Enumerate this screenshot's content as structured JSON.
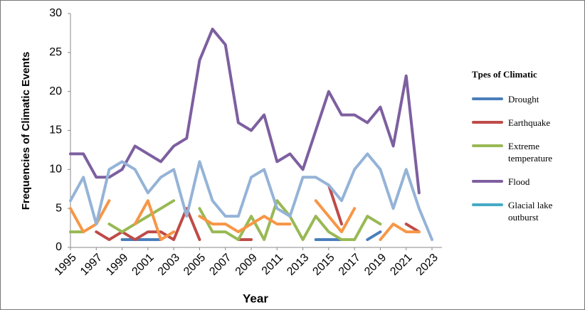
{
  "chart_data": {
    "type": "line",
    "y_label": "Frequencies of Climatic Events",
    "x_label": "Year",
    "legend_title": "Tpes of Climatic",
    "x": [
      1995,
      1996,
      1997,
      1998,
      1999,
      2000,
      2001,
      2002,
      2003,
      2004,
      2005,
      2006,
      2007,
      2008,
      2009,
      2010,
      2011,
      2012,
      2013,
      2014,
      2015,
      2016,
      2017,
      2018,
      2019,
      2020,
      2021,
      2022,
      2023
    ],
    "xlim": [
      1995,
      2023
    ],
    "xticks": [
      1995,
      1997,
      1999,
      2001,
      2003,
      2005,
      2007,
      2009,
      2011,
      2013,
      2015,
      2017,
      2019,
      2021,
      2023
    ],
    "ylim": [
      0,
      30
    ],
    "yticks": [
      0,
      5,
      10,
      15,
      20,
      25,
      30
    ],
    "grid": false,
    "series": [
      {
        "name": "Drought",
        "color": "#4a7ebb",
        "values": [
          null,
          null,
          null,
          null,
          1,
          1,
          1,
          1,
          null,
          null,
          null,
          null,
          null,
          null,
          null,
          null,
          null,
          null,
          null,
          1,
          1,
          1,
          null,
          1,
          2,
          null,
          null,
          null,
          null
        ]
      },
      {
        "name": "Earthquake",
        "color": "#be4b48",
        "values": [
          null,
          null,
          2,
          1,
          2,
          1,
          2,
          2,
          1,
          5,
          1,
          null,
          null,
          1,
          1,
          null,
          null,
          null,
          null,
          null,
          8,
          3,
          null,
          null,
          null,
          null,
          3,
          2,
          null
        ]
      },
      {
        "name": "Extreme temperature",
        "color": "#98b954",
        "values": [
          2,
          2,
          null,
          3,
          2,
          3,
          4,
          5,
          6,
          null,
          5,
          2,
          2,
          1,
          4,
          1,
          6,
          4,
          1,
          4,
          2,
          1,
          1,
          4,
          3,
          null,
          null,
          null,
          null
        ]
      },
      {
        "name": "Flood",
        "color": "#7d5fa0",
        "values": [
          12,
          12,
          9,
          9,
          10,
          13,
          12,
          11,
          13,
          14,
          24,
          28,
          26,
          16,
          15,
          17,
          11,
          12,
          10,
          15,
          20,
          17,
          17,
          16,
          18,
          13,
          22,
          7,
          null
        ]
      },
      {
        "name": "Glacial lake outburst",
        "color": "#46aac5",
        "values": [
          null,
          null,
          null,
          null,
          null,
          null,
          null,
          null,
          null,
          null,
          null,
          null,
          null,
          null,
          null,
          null,
          null,
          null,
          null,
          null,
          null,
          null,
          null,
          null,
          null,
          null,
          null,
          null,
          null
        ]
      },
      {
        "color": "#f79646",
        "values": [
          5,
          2,
          3,
          6,
          null,
          3,
          6,
          1,
          2,
          null,
          4,
          3,
          3,
          2,
          3,
          4,
          3,
          3,
          null,
          6,
          4,
          2,
          5,
          null,
          1,
          3,
          2,
          2,
          null
        ]
      },
      {
        "color": "#95b3d7",
        "values": [
          6,
          9,
          3,
          10,
          11,
          10,
          7,
          9,
          10,
          4,
          11,
          6,
          4,
          4,
          9,
          10,
          5,
          4,
          9,
          9,
          8,
          6,
          10,
          12,
          10,
          5,
          10,
          5,
          1
        ]
      }
    ]
  }
}
